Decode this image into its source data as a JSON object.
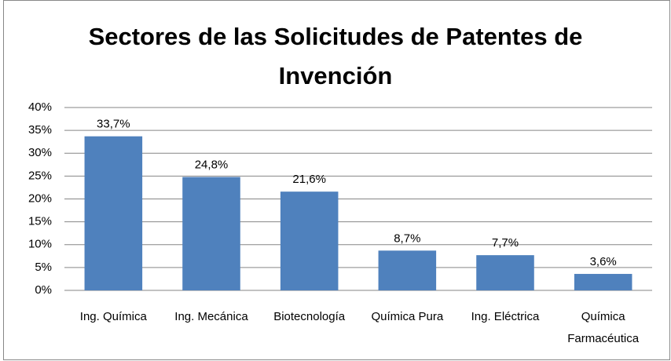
{
  "chart_data": {
    "type": "bar",
    "title": "Sectores de las Solicitudes de Patentes de Invención",
    "categories": [
      "Ing. Química",
      "Ing. Mecánica",
      "Biotecnología",
      "Química Pura",
      "Ing. Eléctrica",
      "Química Farmacéutica"
    ],
    "values": [
      33.7,
      24.8,
      21.6,
      8.7,
      7.7,
      3.6
    ],
    "value_labels": [
      "33,7%",
      "24,8%",
      "21,6%",
      "8,7%",
      "7,7%",
      "3,6%"
    ],
    "color": "#4f81bd",
    "ylim": [
      0,
      40
    ],
    "yticks": [
      {
        "value": 0,
        "label": "0%"
      },
      {
        "value": 5,
        "label": "5%"
      },
      {
        "value": 10,
        "label": "10%"
      },
      {
        "value": 15,
        "label": "15%"
      },
      {
        "value": 20,
        "label": "20%"
      },
      {
        "value": 25,
        "label": "25%"
      },
      {
        "value": 30,
        "label": "30%"
      },
      {
        "value": 35,
        "label": "35%"
      },
      {
        "value": 40,
        "label": "40%"
      }
    ],
    "grid": true
  }
}
